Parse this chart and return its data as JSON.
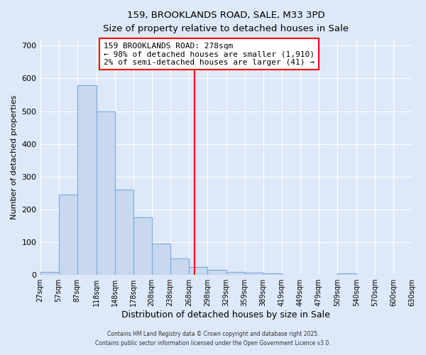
{
  "title1": "159, BROOKLANDS ROAD, SALE, M33 3PD",
  "title2": "Size of property relative to detached houses in Sale",
  "xlabel": "Distribution of detached houses by size in Sale",
  "ylabel": "Number of detached properties",
  "bin_edges": [
    27,
    57,
    87,
    118,
    148,
    178,
    208,
    238,
    268,
    298,
    329,
    359,
    389,
    419,
    449,
    479,
    509,
    540,
    570,
    600,
    630
  ],
  "bar_heights": [
    10,
    245,
    580,
    500,
    260,
    175,
    95,
    50,
    25,
    15,
    10,
    8,
    5,
    0,
    0,
    0,
    5,
    0,
    0,
    0
  ],
  "bar_color": "#c8d8ee",
  "bar_edge_color": "#7aaadd",
  "ref_line_x": 278,
  "ref_line_color": "red",
  "annotation_text": "159 BROOKLANDS ROAD: 278sqm\n← 98% of detached houses are smaller (1,910)\n2% of semi-detached houses are larger (41) →",
  "annotation_box_color": "white",
  "annotation_box_edge": "red",
  "ylim": [
    0,
    720
  ],
  "yticks": [
    0,
    100,
    200,
    300,
    400,
    500,
    600,
    700
  ],
  "background_color": "#dde8f8",
  "grid_color": "white",
  "footer1": "Contains HM Land Registry data © Crown copyright and database right 2025.",
  "footer2": "Contains public sector information licensed under the Open Government Licence v3.0.",
  "tick_labels": [
    "27sqm",
    "57sqm",
    "87sqm",
    "118sqm",
    "148sqm",
    "178sqm",
    "208sqm",
    "238sqm",
    "268sqm",
    "298sqm",
    "329sqm",
    "359sqm",
    "389sqm",
    "419sqm",
    "449sqm",
    "479sqm",
    "509sqm",
    "540sqm",
    "570sqm",
    "600sqm",
    "630sqm"
  ]
}
